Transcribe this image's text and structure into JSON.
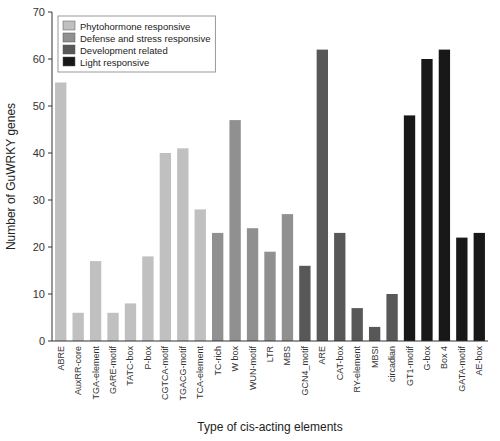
{
  "chart_data": {
    "type": "bar",
    "xlabel": "Type of cis-acting elements",
    "ylabel": "Number of GuWRKY genes",
    "categories": [
      "ABRE",
      "AuxRR-core",
      "TGA-element",
      "GARE-motif",
      "TATC-box",
      "P-box",
      "CGTCA-motif",
      "TGACG-motif",
      "TCA-element",
      "TC-rich",
      "W box",
      "WUN-motif",
      "LTR",
      "MBS",
      "GCN4_motif",
      "ARE",
      "CAT-box",
      "RY-element",
      "MBSI",
      "circadian",
      "GT1-motif",
      "G-box",
      "Box 4",
      "GATA-motif",
      "AE-box"
    ],
    "series": [
      {
        "name": "Phytohormone responsive",
        "color": "#c0c0c0",
        "values": [
          55,
          6,
          17,
          6,
          8,
          18,
          40,
          41,
          28,
          null,
          null,
          null,
          null,
          null,
          null,
          null,
          null,
          null,
          null,
          null,
          null,
          null,
          null,
          null,
          null
        ]
      },
      {
        "name": "Defense and stress responsive",
        "color": "#909090",
        "values": [
          null,
          null,
          null,
          null,
          null,
          null,
          null,
          null,
          null,
          23,
          47,
          24,
          19,
          27,
          null,
          null,
          null,
          null,
          null,
          null,
          null,
          null,
          null,
          null,
          null
        ]
      },
      {
        "name": "Development related",
        "color": "#585858",
        "values": [
          null,
          null,
          null,
          null,
          null,
          null,
          null,
          null,
          null,
          null,
          null,
          null,
          null,
          null,
          16,
          62,
          23,
          7,
          3,
          10,
          null,
          null,
          null,
          null,
          null
        ]
      },
      {
        "name": "Light responsive",
        "color": "#181818",
        "values": [
          null,
          null,
          null,
          null,
          null,
          null,
          null,
          null,
          null,
          null,
          null,
          null,
          null,
          null,
          null,
          null,
          null,
          null,
          null,
          null,
          48,
          60,
          62,
          22,
          23
        ]
      }
    ],
    "stacked": true,
    "ylim": [
      0,
      70
    ],
    "yticks": [
      0,
      10,
      20,
      30,
      40,
      50,
      60,
      70
    ],
    "grid": false,
    "legend": "upper left"
  }
}
